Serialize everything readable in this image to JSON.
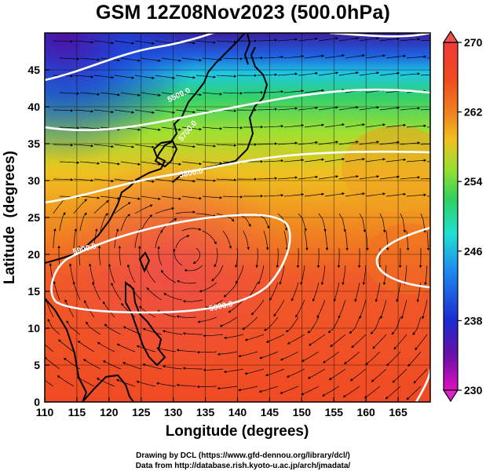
{
  "title": "GSM 12Z08Nov2023 (500.0hPa)",
  "credit": {
    "line1": "Drawing by DCL (https://www.gfd-dennou.org/library/dcl/)",
    "line2": "Data from http://database.rish.kyoto-u.ac.jp/arch/jmadata/"
  },
  "chart_data": {
    "type": "heatmap",
    "xlabel": "Longitude (degrees)",
    "ylabel": "Latitude  (degrees)",
    "xlim": [
      110,
      170
    ],
    "ylim": [
      0,
      50
    ],
    "x_ticks": [
      110,
      115,
      120,
      125,
      130,
      135,
      140,
      145,
      150,
      155,
      160,
      165
    ],
    "y_ticks": [
      0,
      5,
      10,
      15,
      20,
      25,
      30,
      35,
      40,
      45
    ],
    "grid": true,
    "colorbar": {
      "min": 230,
      "max": 270,
      "tick_labels": [
        230,
        238,
        246,
        254,
        262,
        270
      ],
      "colors": [
        "#e010c0",
        "#6a10a8",
        "#1c2ad0",
        "#1e8ff0",
        "#20e0d0",
        "#30d060",
        "#90e030",
        "#f0c020",
        "#f08020",
        "#f04820",
        "#f03a3a"
      ]
    },
    "contour_labels": [
      "5500.0",
      "5700.0",
      "5800.0",
      "5900.0",
      "5900.0"
    ],
    "overlay": "wind streamlines and coastlines"
  }
}
